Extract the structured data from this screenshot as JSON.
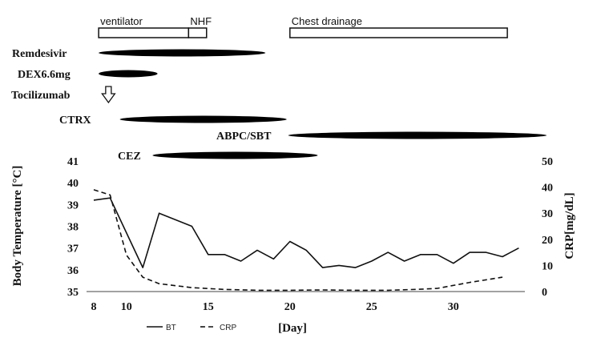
{
  "chart_data": {
    "type": "line",
    "xlabel": "[Day]",
    "ylabel_left": "Body Temperature [°C]",
    "ylabel_right": "CRP[mg/dL]",
    "xlim": [
      8,
      35
    ],
    "ylim_left": [
      35,
      41
    ],
    "ylim_right": [
      0,
      50
    ],
    "x_ticks": [
      8,
      10,
      15,
      20,
      25,
      30
    ],
    "y_ticks_left": [
      35,
      36,
      37,
      38,
      39,
      40,
      41
    ],
    "y_ticks_right": [
      0,
      10,
      20,
      30,
      40,
      50
    ],
    "grid": false,
    "legend_position": "bottom-left",
    "series": [
      {
        "name": "BT",
        "style": "solid",
        "axis": "left",
        "x": [
          8,
          9,
          11,
          12,
          14,
          15,
          16,
          17,
          18,
          19,
          20,
          21,
          22,
          23,
          24,
          25,
          26,
          27,
          28,
          29,
          30,
          31,
          32,
          33,
          34
        ],
        "y": [
          39.2,
          39.3,
          36.1,
          38.6,
          38.0,
          36.7,
          36.7,
          36.4,
          36.9,
          36.5,
          37.3,
          36.9,
          36.1,
          36.2,
          36.1,
          36.4,
          36.8,
          36.4,
          36.7,
          36.7,
          36.3,
          36.8,
          36.8,
          36.6,
          37.0
        ]
      },
      {
        "name": "CRP",
        "style": "dashed",
        "axis": "right",
        "x": [
          8,
          9,
          10,
          11,
          12,
          14,
          16,
          18,
          20,
          22,
          24,
          26,
          28,
          29,
          31,
          33
        ],
        "y": [
          39,
          37,
          14,
          5.5,
          3,
          1.5,
          0.8,
          0.5,
          0.5,
          0.6,
          0.5,
          0.5,
          0.9,
          1.2,
          3.5,
          5.5
        ]
      }
    ],
    "treatments": [
      {
        "label": "ventilator",
        "kind": "box",
        "start": 8.3,
        "end": 13.8
      },
      {
        "label": "NHF",
        "kind": "box",
        "start": 13.8,
        "end": 14.9
      },
      {
        "label": "Chest drainage",
        "kind": "box",
        "start": 20.0,
        "end": 33.3
      },
      {
        "label": "Remdesivir",
        "kind": "bar",
        "start": 8.3,
        "end": 18.5
      },
      {
        "label": "DEX6.6mg",
        "kind": "bar",
        "start": 8.3,
        "end": 11.9
      },
      {
        "label": "Tocilizumab",
        "kind": "arrow",
        "at": 8.9
      },
      {
        "label": "CTRX",
        "kind": "bar",
        "start": 9.6,
        "end": 19.8
      },
      {
        "label": "ABPC/SBT",
        "kind": "bar",
        "start": 19.9,
        "end": 35.7
      },
      {
        "label": "CEZ",
        "kind": "bar",
        "start": 11.6,
        "end": 21.7
      }
    ]
  }
}
